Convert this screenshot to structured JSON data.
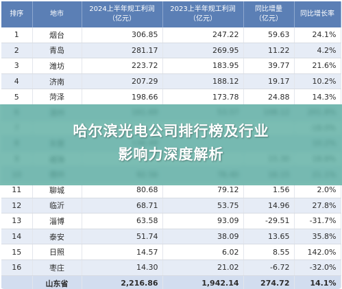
{
  "table": {
    "headers": {
      "rank": "排序",
      "city": "地市",
      "profit_2024": [
        "2024上半年规工利润",
        "（亿元）"
      ],
      "profit_2023": [
        "2023上半年规工利润",
        "（亿元）"
      ],
      "yoy_increase": [
        "同比增量",
        "（亿元）"
      ],
      "yoy_rate": "同比增长率"
    },
    "rows": [
      {
        "rank": "1",
        "city": "烟台",
        "p2024": "306.85",
        "p2023": "247.22",
        "inc": "59.63",
        "rate": "24.1%"
      },
      {
        "rank": "2",
        "city": "青岛",
        "p2024": "281.17",
        "p2023": "269.95",
        "inc": "11.22",
        "rate": "4.2%"
      },
      {
        "rank": "3",
        "city": "潍坊",
        "p2024": "223.72",
        "p2023": "183.95",
        "inc": "39.77",
        "rate": "21.6%"
      },
      {
        "rank": "4",
        "city": "济南",
        "p2024": "207.29",
        "p2023": "188.12",
        "inc": "19.17",
        "rate": "10.2%"
      },
      {
        "rank": "5",
        "city": "菏泽",
        "p2024": "198.66",
        "p2023": "173.78",
        "inc": "24.88",
        "rate": "14.3%"
      },
      {
        "rank": "6",
        "city": "滨州",
        "p2024": "161.69",
        "p2023": "53.57",
        "inc": "108.12",
        "rate": "201.8%"
      },
      {
        "rank": "7",
        "city": "",
        "p2024": "",
        "p2023": "",
        "inc": "",
        "rate": "-18.0%"
      },
      {
        "rank": "8",
        "city": "东营",
        "p2024": "136.49",
        "p2023": "",
        "inc": "",
        "rate": "10.2%"
      },
      {
        "rank": "9",
        "city": "威海",
        "p2024": "",
        "p2023": "",
        "inc": "15.30",
        "rate": "18.8%"
      },
      {
        "rank": "10",
        "city": "德州",
        "p2024": "92.56",
        "p2023": "76.40",
        "inc": "16.15",
        "rate": "21.1%"
      },
      {
        "rank": "11",
        "city": "聊城",
        "p2024": "80.68",
        "p2023": "79.12",
        "inc": "1.56",
        "rate": "2.0%"
      },
      {
        "rank": "12",
        "city": "临沂",
        "p2024": "68.71",
        "p2023": "53.75",
        "inc": "14.96",
        "rate": "27.8%"
      },
      {
        "rank": "13",
        "city": "淄博",
        "p2024": "63.58",
        "p2023": "93.09",
        "inc": "-29.51",
        "rate": "-31.7%"
      },
      {
        "rank": "14",
        "city": "泰安",
        "p2024": "51.74",
        "p2023": "38.09",
        "inc": "13.65",
        "rate": "35.8%"
      },
      {
        "rank": "15",
        "city": "日照",
        "p2024": "14.57",
        "p2023": "6.02",
        "inc": "8.55",
        "rate": "142.0%"
      },
      {
        "rank": "16",
        "city": "枣庄",
        "p2024": "14.30",
        "p2023": "21.02",
        "inc": "-6.72",
        "rate": "-32.0%"
      }
    ],
    "total": {
      "rank": "",
      "city": "山东省",
      "p2024": "2,216.86",
      "p2023": "1,942.14",
      "inc": "274.72",
      "rate": "14.1%"
    }
  },
  "overlay": {
    "title_line1": "哈尔滨光电公司排行榜及行业",
    "title_line2": "影响力深度解析"
  }
}
